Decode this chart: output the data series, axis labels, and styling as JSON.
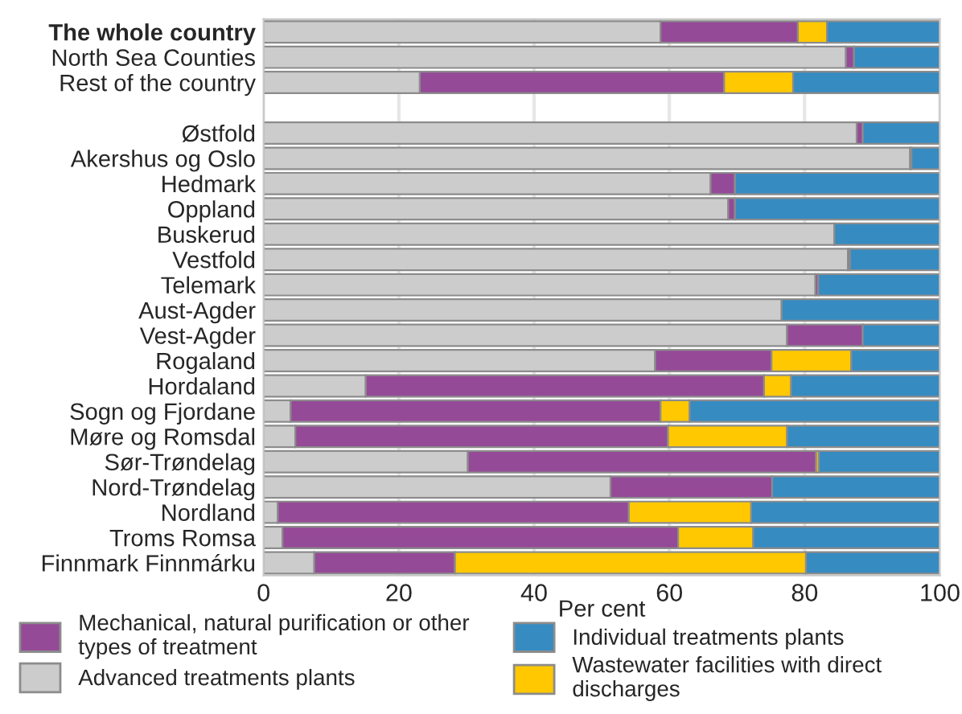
{
  "chart_data": {
    "type": "bar",
    "orientation": "horizontal",
    "stacked": true,
    "xlabel": "Per cent",
    "categories": [
      "The whole country",
      "North Sea Counties",
      "Rest of the country",
      null,
      "Østfold",
      "Akershus og Oslo",
      "Hedmark",
      "Oppland",
      "Buskerud",
      "Vestfold",
      "Telemark",
      "Aust-Agder",
      "Vest-Agder",
      "Rogaland",
      "Hordaland",
      "Sogn og Fjordane",
      "Møre og Romsdal",
      "Sør-Trøndelag",
      "Nord-Trøndelag",
      "Nordland",
      "Troms Romsa",
      "Finnmark Finnmárku"
    ],
    "series": [
      {
        "name": "Advanced treatments plants",
        "color": "#cccccc",
        "values": [
          58.7,
          86.1,
          23.1,
          null,
          87.7,
          95.6,
          66.1,
          68.7,
          84.4,
          86.4,
          81.6,
          76.6,
          77.4,
          57.9,
          15.1,
          4.0,
          4.7,
          30.2,
          51.3,
          2.1,
          2.8,
          7.5
        ]
      },
      {
        "name": "Mechanical, natural purification or other types of treatment",
        "color": "#954a97",
        "values": [
          20.3,
          1.2,
          45.0,
          null,
          0.9,
          0.2,
          3.6,
          1.0,
          0,
          0.3,
          0.4,
          0,
          11.2,
          17.2,
          58.9,
          54.7,
          55.1,
          51.5,
          23.9,
          51.9,
          58.5,
          20.8
        ]
      },
      {
        "name": "Wastewater facilities with direct discharges",
        "color": "#ffc800",
        "values": [
          4.3,
          0,
          10.2,
          null,
          0,
          0,
          0,
          0,
          0,
          0,
          0,
          0,
          0,
          11.8,
          4.0,
          4.3,
          17.6,
          0.4,
          0,
          18.1,
          11.1,
          51.9
        ]
      },
      {
        "name": "Individual treatments plants",
        "color": "#368bc1",
        "values": [
          16.7,
          12.7,
          21.7,
          null,
          11.4,
          4.2,
          30.3,
          30.3,
          15.6,
          13.3,
          18.0,
          23.4,
          11.4,
          13.1,
          22.0,
          37.0,
          22.6,
          17.9,
          24.8,
          27.9,
          27.6,
          19.8
        ]
      }
    ],
    "xlim": [
      0,
      100
    ],
    "xticks": [
      0,
      20,
      40,
      60,
      80,
      100
    ],
    "grid": "x",
    "legend": "bottom"
  }
}
